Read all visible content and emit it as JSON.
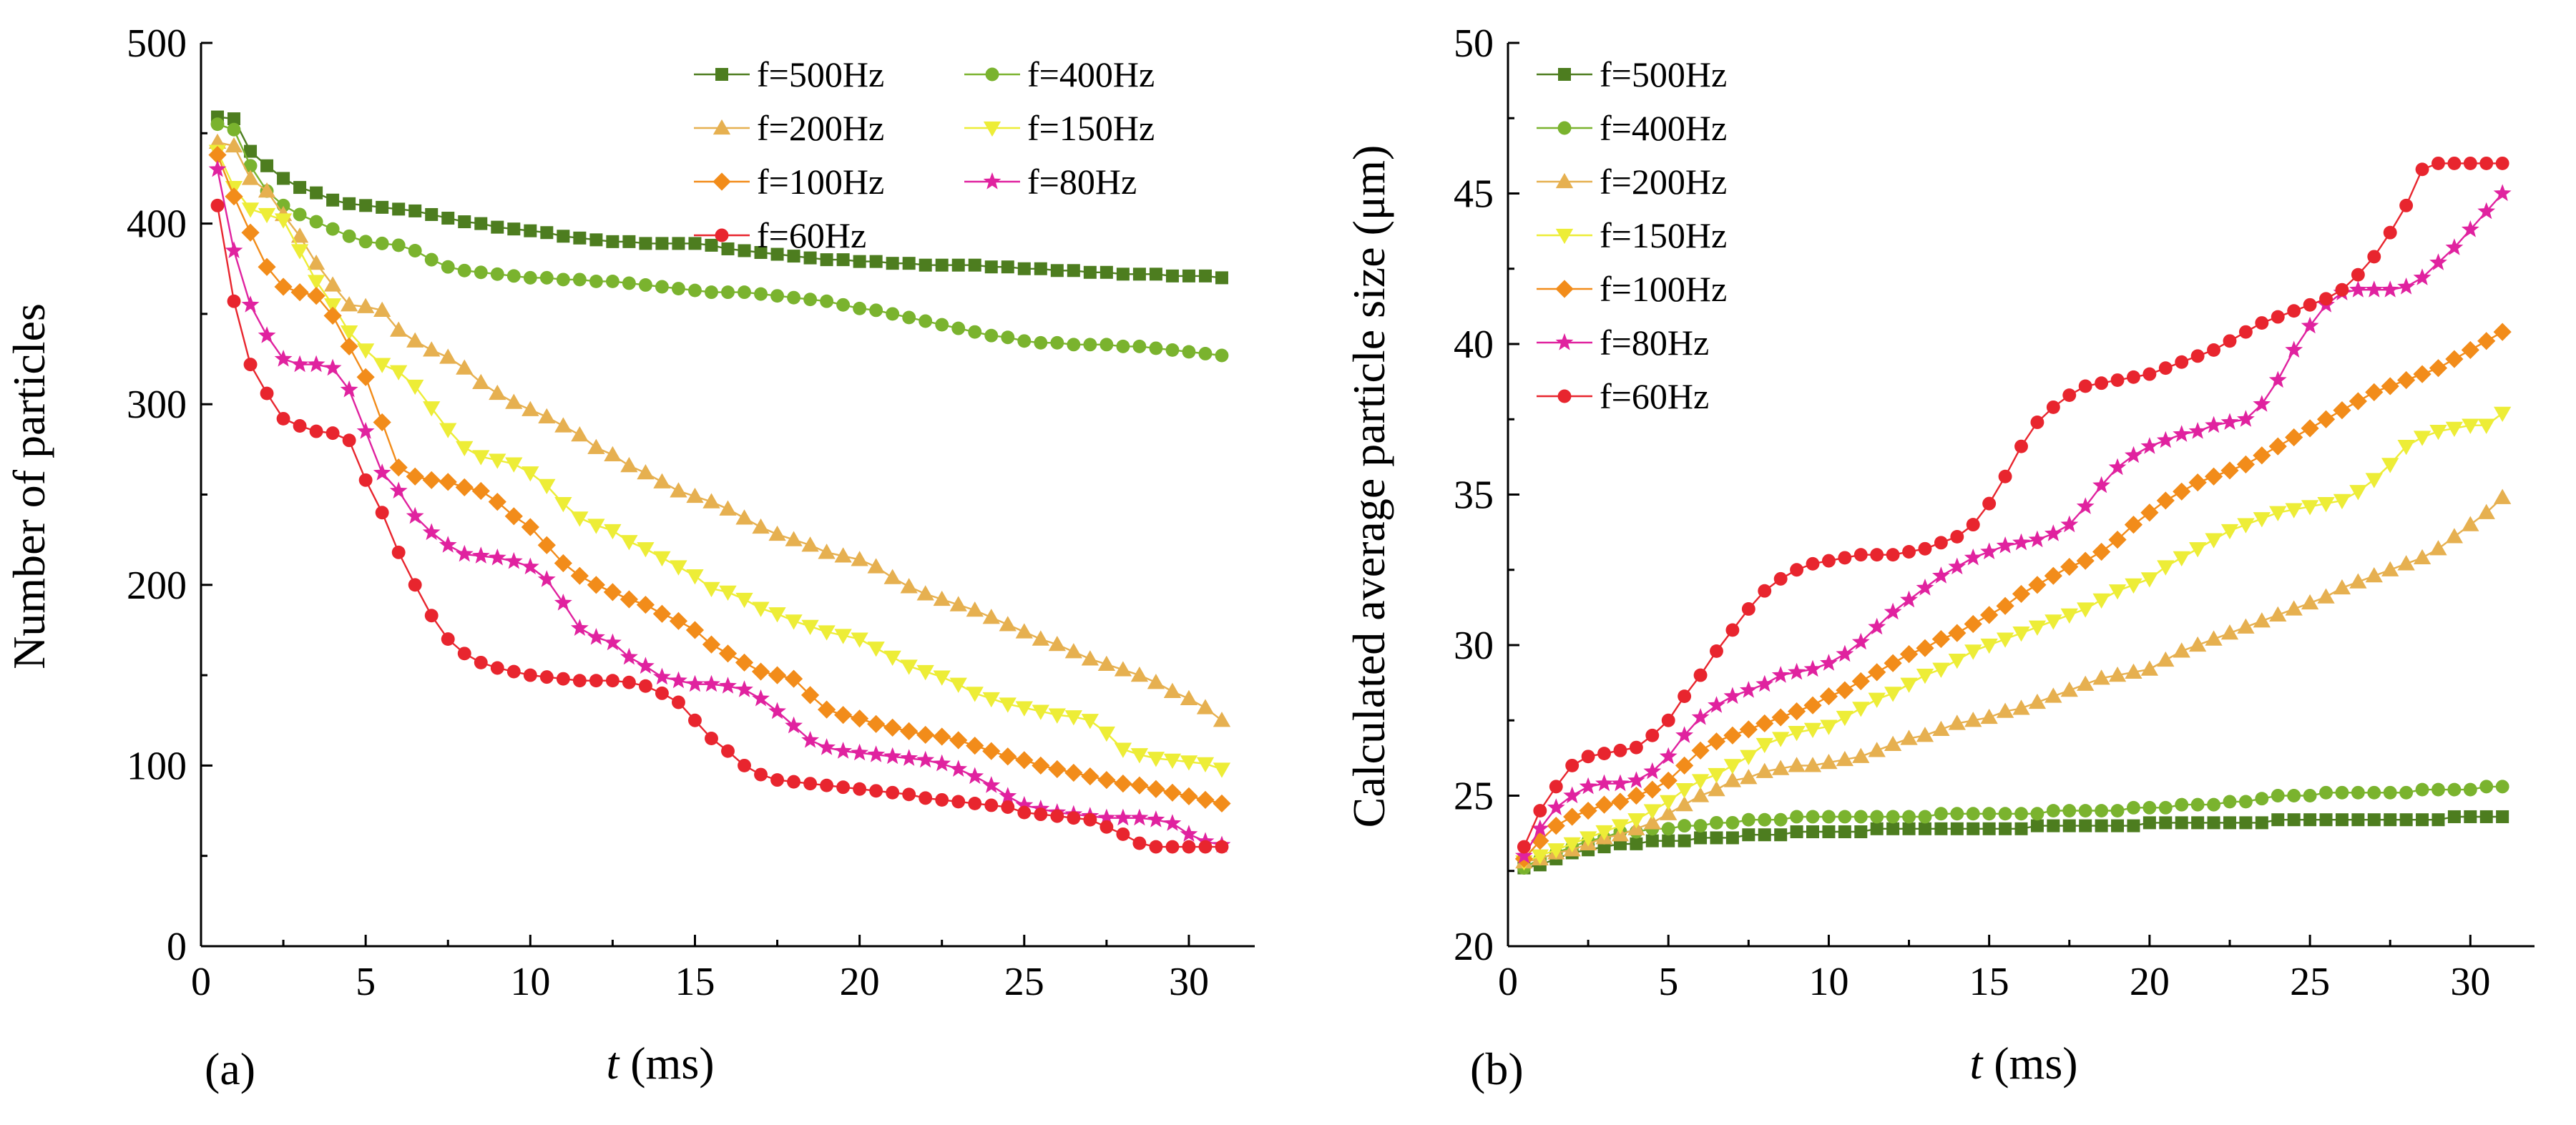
{
  "figure": {
    "panel_a_label": "(a)",
    "panel_b_label": "(b)"
  },
  "chart_data": [
    {
      "type": "line",
      "panel": "(a)",
      "title": "",
      "xlabel_italic": "t",
      "xlabel_unit": " (ms)",
      "ylabel": "Number of particles",
      "xlim": [
        0,
        32
      ],
      "ylim": [
        0,
        500
      ],
      "xticks": [
        0,
        5,
        10,
        15,
        20,
        25,
        30
      ],
      "yticks": [
        0,
        100,
        200,
        300,
        400,
        500
      ],
      "grid": false,
      "legend_position": "top-right, 2 columns",
      "x": [
        0.5,
        1,
        1.5,
        2,
        2.5,
        3,
        3.5,
        4,
        4.5,
        5,
        5.5,
        6,
        6.5,
        7,
        7.5,
        8,
        8.5,
        9,
        9.5,
        10,
        10.5,
        11,
        11.5,
        12,
        12.5,
        13,
        13.5,
        14,
        14.5,
        15,
        15.5,
        16,
        16.5,
        17,
        17.5,
        18,
        18.5,
        19,
        19.5,
        20,
        20.5,
        21,
        21.5,
        22,
        22.5,
        23,
        23.5,
        24,
        24.5,
        25,
        25.5,
        26,
        26.5,
        27,
        27.5,
        28,
        28.5,
        29,
        29.5,
        30,
        30.5,
        31
      ],
      "series": [
        {
          "name": "f=500Hz",
          "color": "#4d7d1f",
          "marker": "square",
          "values": [
            459,
            458,
            440,
            432,
            425,
            420,
            417,
            413,
            411,
            410,
            409,
            408,
            407,
            405,
            403,
            401,
            400,
            398,
            397,
            396,
            395,
            393,
            392,
            391,
            390,
            390,
            389,
            389,
            389,
            389,
            388,
            386,
            385,
            384,
            383,
            382,
            381,
            380,
            380,
            379,
            379,
            378,
            378,
            377,
            377,
            377,
            377,
            376,
            376,
            375,
            375,
            374,
            374,
            373,
            373,
            372,
            372,
            372,
            371,
            371,
            371,
            370
          ]
        },
        {
          "name": "f=400Hz",
          "color": "#7ab32e",
          "marker": "circle",
          "values": [
            455,
            452,
            432,
            418,
            410,
            405,
            401,
            397,
            393,
            390,
            389,
            388,
            385,
            380,
            376,
            374,
            373,
            372,
            371,
            370,
            370,
            369,
            369,
            368,
            368,
            367,
            366,
            365,
            364,
            363,
            362,
            362,
            362,
            361,
            360,
            359,
            358,
            357,
            355,
            353,
            352,
            350,
            348,
            346,
            344,
            342,
            340,
            338,
            337,
            335,
            334,
            334,
            333,
            333,
            333,
            332,
            332,
            331,
            330,
            329,
            328,
            327
          ]
        },
        {
          "name": "f=200Hz",
          "color": "#e6b050",
          "marker": "triangle-up",
          "values": [
            445,
            443,
            425,
            418,
            405,
            393,
            378,
            366,
            355,
            354,
            352,
            341,
            335,
            330,
            326,
            320,
            312,
            306,
            301,
            297,
            293,
            288,
            283,
            276,
            272,
            266,
            262,
            257,
            252,
            249,
            246,
            242,
            237,
            232,
            228,
            225,
            222,
            218,
            216,
            214,
            210,
            204,
            199,
            195,
            192,
            189,
            186,
            182,
            178,
            174,
            170,
            167,
            163,
            159,
            156,
            153,
            150,
            146,
            141,
            137,
            132,
            125
          ]
        },
        {
          "name": "f=150Hz",
          "color": "#eded37",
          "marker": "triangle-down",
          "values": [
            440,
            420,
            408,
            405,
            402,
            385,
            368,
            355,
            340,
            330,
            322,
            318,
            310,
            298,
            286,
            276,
            271,
            269,
            267,
            262,
            255,
            245,
            237,
            233,
            230,
            224,
            220,
            215,
            210,
            205,
            198,
            196,
            192,
            187,
            184,
            180,
            177,
            174,
            172,
            170,
            165,
            160,
            155,
            152,
            149,
            145,
            140,
            137,
            134,
            132,
            130,
            128,
            127,
            125,
            118,
            109,
            106,
            104,
            103,
            102,
            101,
            98
          ]
        },
        {
          "name": "f=100Hz",
          "color": "#f28c1a",
          "marker": "diamond",
          "values": [
            438,
            415,
            395,
            376,
            365,
            362,
            360,
            349,
            332,
            315,
            290,
            265,
            260,
            258,
            257,
            254,
            252,
            246,
            238,
            232,
            222,
            212,
            205,
            200,
            196,
            192,
            189,
            184,
            180,
            175,
            167,
            162,
            157,
            152,
            150,
            148,
            139,
            131,
            128,
            126,
            123,
            121,
            119,
            117,
            116,
            114,
            111,
            108,
            105,
            103,
            100,
            98,
            96,
            94,
            92,
            90,
            89,
            87,
            85,
            83,
            81,
            79
          ]
        },
        {
          "name": "f=80Hz",
          "color": "#e0229f",
          "marker": "star",
          "values": [
            430,
            385,
            355,
            338,
            325,
            322,
            322,
            320,
            308,
            285,
            262,
            252,
            238,
            229,
            222,
            217,
            216,
            215,
            213,
            210,
            203,
            190,
            176,
            171,
            168,
            160,
            155,
            149,
            147,
            145,
            145,
            144,
            142,
            137,
            130,
            122,
            114,
            110,
            108,
            107,
            106,
            105,
            104,
            103,
            101,
            98,
            94,
            89,
            83,
            78,
            76,
            74,
            73,
            72,
            71,
            71,
            71,
            70,
            68,
            62,
            58,
            56
          ]
        },
        {
          "name": "f=60Hz",
          "color": "#e8252e",
          "marker": "circle",
          "values": [
            410,
            357,
            322,
            306,
            292,
            288,
            285,
            284,
            280,
            258,
            240,
            218,
            200,
            183,
            170,
            162,
            157,
            154,
            152,
            150,
            149,
            148,
            147,
            147,
            147,
            146,
            144,
            140,
            135,
            125,
            115,
            108,
            100,
            95,
            92,
            91,
            90,
            89,
            88,
            87,
            86,
            85,
            84,
            82,
            81,
            80,
            79,
            78,
            77,
            74,
            73,
            72,
            71,
            70,
            66,
            62,
            57,
            55,
            55,
            55,
            55,
            55
          ]
        }
      ]
    },
    {
      "type": "line",
      "panel": "(b)",
      "title": "",
      "xlabel_italic": "t",
      "xlabel_unit": " (ms)",
      "ylabel": "Calculated average particle size (μm)",
      "xlim": [
        0,
        32
      ],
      "ylim": [
        20,
        50
      ],
      "xticks": [
        0,
        5,
        10,
        15,
        20,
        25,
        30
      ],
      "yticks": [
        20,
        25,
        30,
        35,
        40,
        45,
        50
      ],
      "grid": false,
      "legend_position": "top-left, 1 column",
      "x": [
        0.5,
        1,
        1.5,
        2,
        2.5,
        3,
        3.5,
        4,
        4.5,
        5,
        5.5,
        6,
        6.5,
        7,
        7.5,
        8,
        8.5,
        9,
        9.5,
        10,
        10.5,
        11,
        11.5,
        12,
        12.5,
        13,
        13.5,
        14,
        14.5,
        15,
        15.5,
        16,
        16.5,
        17,
        17.5,
        18,
        18.5,
        19,
        19.5,
        20,
        20.5,
        21,
        21.5,
        22,
        22.5,
        23,
        23.5,
        24,
        24.5,
        25,
        25.5,
        26,
        26.5,
        27,
        27.5,
        28,
        28.5,
        29,
        29.5,
        30,
        30.5,
        31
      ],
      "series": [
        {
          "name": "f=500Hz",
          "color": "#4d7d1f",
          "marker": "square",
          "values": [
            22.6,
            22.7,
            22.9,
            23.1,
            23.2,
            23.3,
            23.4,
            23.4,
            23.5,
            23.5,
            23.5,
            23.6,
            23.6,
            23.6,
            23.7,
            23.7,
            23.7,
            23.8,
            23.8,
            23.8,
            23.8,
            23.8,
            23.9,
            23.9,
            23.9,
            23.9,
            23.9,
            23.9,
            23.9,
            23.9,
            23.9,
            23.9,
            24,
            24,
            24,
            24,
            24,
            24,
            24,
            24.1,
            24.1,
            24.1,
            24.1,
            24.1,
            24.1,
            24.1,
            24.1,
            24.2,
            24.2,
            24.2,
            24.2,
            24.2,
            24.2,
            24.2,
            24.2,
            24.2,
            24.2,
            24.2,
            24.3,
            24.3,
            24.3,
            24.3
          ]
        },
        {
          "name": "f=400Hz",
          "color": "#7ab32e",
          "marker": "circle",
          "values": [
            22.6,
            22.9,
            23.1,
            23.3,
            23.5,
            23.6,
            23.8,
            23.8,
            23.9,
            23.9,
            24,
            24,
            24.1,
            24.1,
            24.2,
            24.2,
            24.2,
            24.3,
            24.3,
            24.3,
            24.3,
            24.3,
            24.3,
            24.3,
            24.3,
            24.3,
            24.4,
            24.4,
            24.4,
            24.4,
            24.4,
            24.4,
            24.4,
            24.5,
            24.5,
            24.5,
            24.5,
            24.5,
            24.6,
            24.6,
            24.6,
            24.7,
            24.7,
            24.7,
            24.8,
            24.8,
            24.9,
            25,
            25,
            25,
            25.1,
            25.1,
            25.1,
            25.1,
            25.1,
            25.1,
            25.2,
            25.2,
            25.2,
            25.2,
            25.3,
            25.3
          ]
        },
        {
          "name": "f=200Hz",
          "color": "#e6b050",
          "marker": "triangle-up",
          "values": [
            22.8,
            22.9,
            23.1,
            23.2,
            23.4,
            23.6,
            23.7,
            23.9,
            24.1,
            24.4,
            24.7,
            25,
            25.2,
            25.5,
            25.6,
            25.8,
            25.9,
            26,
            26,
            26.1,
            26.2,
            26.3,
            26.5,
            26.7,
            26.9,
            27,
            27.2,
            27.4,
            27.5,
            27.6,
            27.8,
            27.9,
            28.1,
            28.3,
            28.5,
            28.7,
            28.9,
            29,
            29.1,
            29.2,
            29.5,
            29.8,
            30,
            30.2,
            30.4,
            30.6,
            30.8,
            31,
            31.2,
            31.4,
            31.6,
            31.9,
            32.1,
            32.3,
            32.5,
            32.7,
            32.9,
            33.2,
            33.6,
            34,
            34.4,
            34.9
          ]
        },
        {
          "name": "f=150Hz",
          "color": "#eded37",
          "marker": "triangle-down",
          "values": [
            22.8,
            23,
            23.2,
            23.4,
            23.6,
            23.8,
            24,
            24.2,
            24.5,
            24.8,
            25.2,
            25.5,
            25.7,
            26,
            26.3,
            26.7,
            26.9,
            27.1,
            27.2,
            27.3,
            27.6,
            27.9,
            28.2,
            28.4,
            28.7,
            29,
            29.2,
            29.5,
            29.8,
            30,
            30.2,
            30.4,
            30.6,
            30.8,
            31,
            31.2,
            31.5,
            31.8,
            32,
            32.2,
            32.6,
            32.9,
            33.2,
            33.5,
            33.8,
            34,
            34.2,
            34.4,
            34.5,
            34.6,
            34.7,
            34.8,
            35.1,
            35.5,
            36,
            36.6,
            36.9,
            37.1,
            37.2,
            37.3,
            37.3,
            37.7
          ]
        },
        {
          "name": "f=100Hz",
          "color": "#f28c1a",
          "marker": "diamond",
          "values": [
            22.9,
            23.5,
            24,
            24.3,
            24.5,
            24.7,
            24.8,
            25,
            25.2,
            25.5,
            26,
            26.5,
            26.8,
            27,
            27.2,
            27.4,
            27.6,
            27.8,
            28,
            28.3,
            28.5,
            28.8,
            29.1,
            29.4,
            29.7,
            29.9,
            30.2,
            30.4,
            30.7,
            31,
            31.3,
            31.7,
            32,
            32.3,
            32.6,
            32.8,
            33.1,
            33.5,
            34,
            34.4,
            34.8,
            35.1,
            35.4,
            35.6,
            35.8,
            36,
            36.3,
            36.6,
            36.9,
            37.2,
            37.5,
            37.8,
            38.1,
            38.4,
            38.6,
            38.8,
            39,
            39.2,
            39.5,
            39.8,
            40.1,
            40.4
          ]
        },
        {
          "name": "f=80Hz",
          "color": "#e0229f",
          "marker": "star",
          "values": [
            23,
            23.9,
            24.6,
            25,
            25.3,
            25.4,
            25.4,
            25.5,
            25.8,
            26.3,
            27,
            27.6,
            28,
            28.3,
            28.5,
            28.7,
            29,
            29.1,
            29.2,
            29.4,
            29.7,
            30.1,
            30.6,
            31.1,
            31.5,
            31.9,
            32.3,
            32.6,
            32.9,
            33.1,
            33.3,
            33.4,
            33.5,
            33.7,
            34,
            34.6,
            35.3,
            35.9,
            36.3,
            36.6,
            36.8,
            37,
            37.1,
            37.3,
            37.4,
            37.5,
            38,
            38.8,
            39.8,
            40.6,
            41.3,
            41.7,
            41.8,
            41.8,
            41.8,
            41.9,
            42.2,
            42.7,
            43.2,
            43.8,
            44.4,
            45
          ]
        },
        {
          "name": "f=60Hz",
          "color": "#e8252e",
          "marker": "circle",
          "values": [
            23.3,
            24.5,
            25.3,
            26,
            26.3,
            26.4,
            26.5,
            26.6,
            27,
            27.5,
            28.3,
            29,
            29.8,
            30.5,
            31.2,
            31.8,
            32.2,
            32.5,
            32.7,
            32.8,
            32.9,
            33,
            33,
            33,
            33.1,
            33.2,
            33.4,
            33.6,
            34,
            34.7,
            35.6,
            36.6,
            37.4,
            37.9,
            38.3,
            38.6,
            38.7,
            38.8,
            38.9,
            39,
            39.2,
            39.4,
            39.6,
            39.8,
            40.1,
            40.4,
            40.7,
            40.9,
            41.1,
            41.3,
            41.5,
            41.8,
            42.3,
            42.9,
            43.7,
            44.6,
            45.8,
            46,
            46,
            46,
            46,
            46
          ]
        }
      ]
    }
  ]
}
